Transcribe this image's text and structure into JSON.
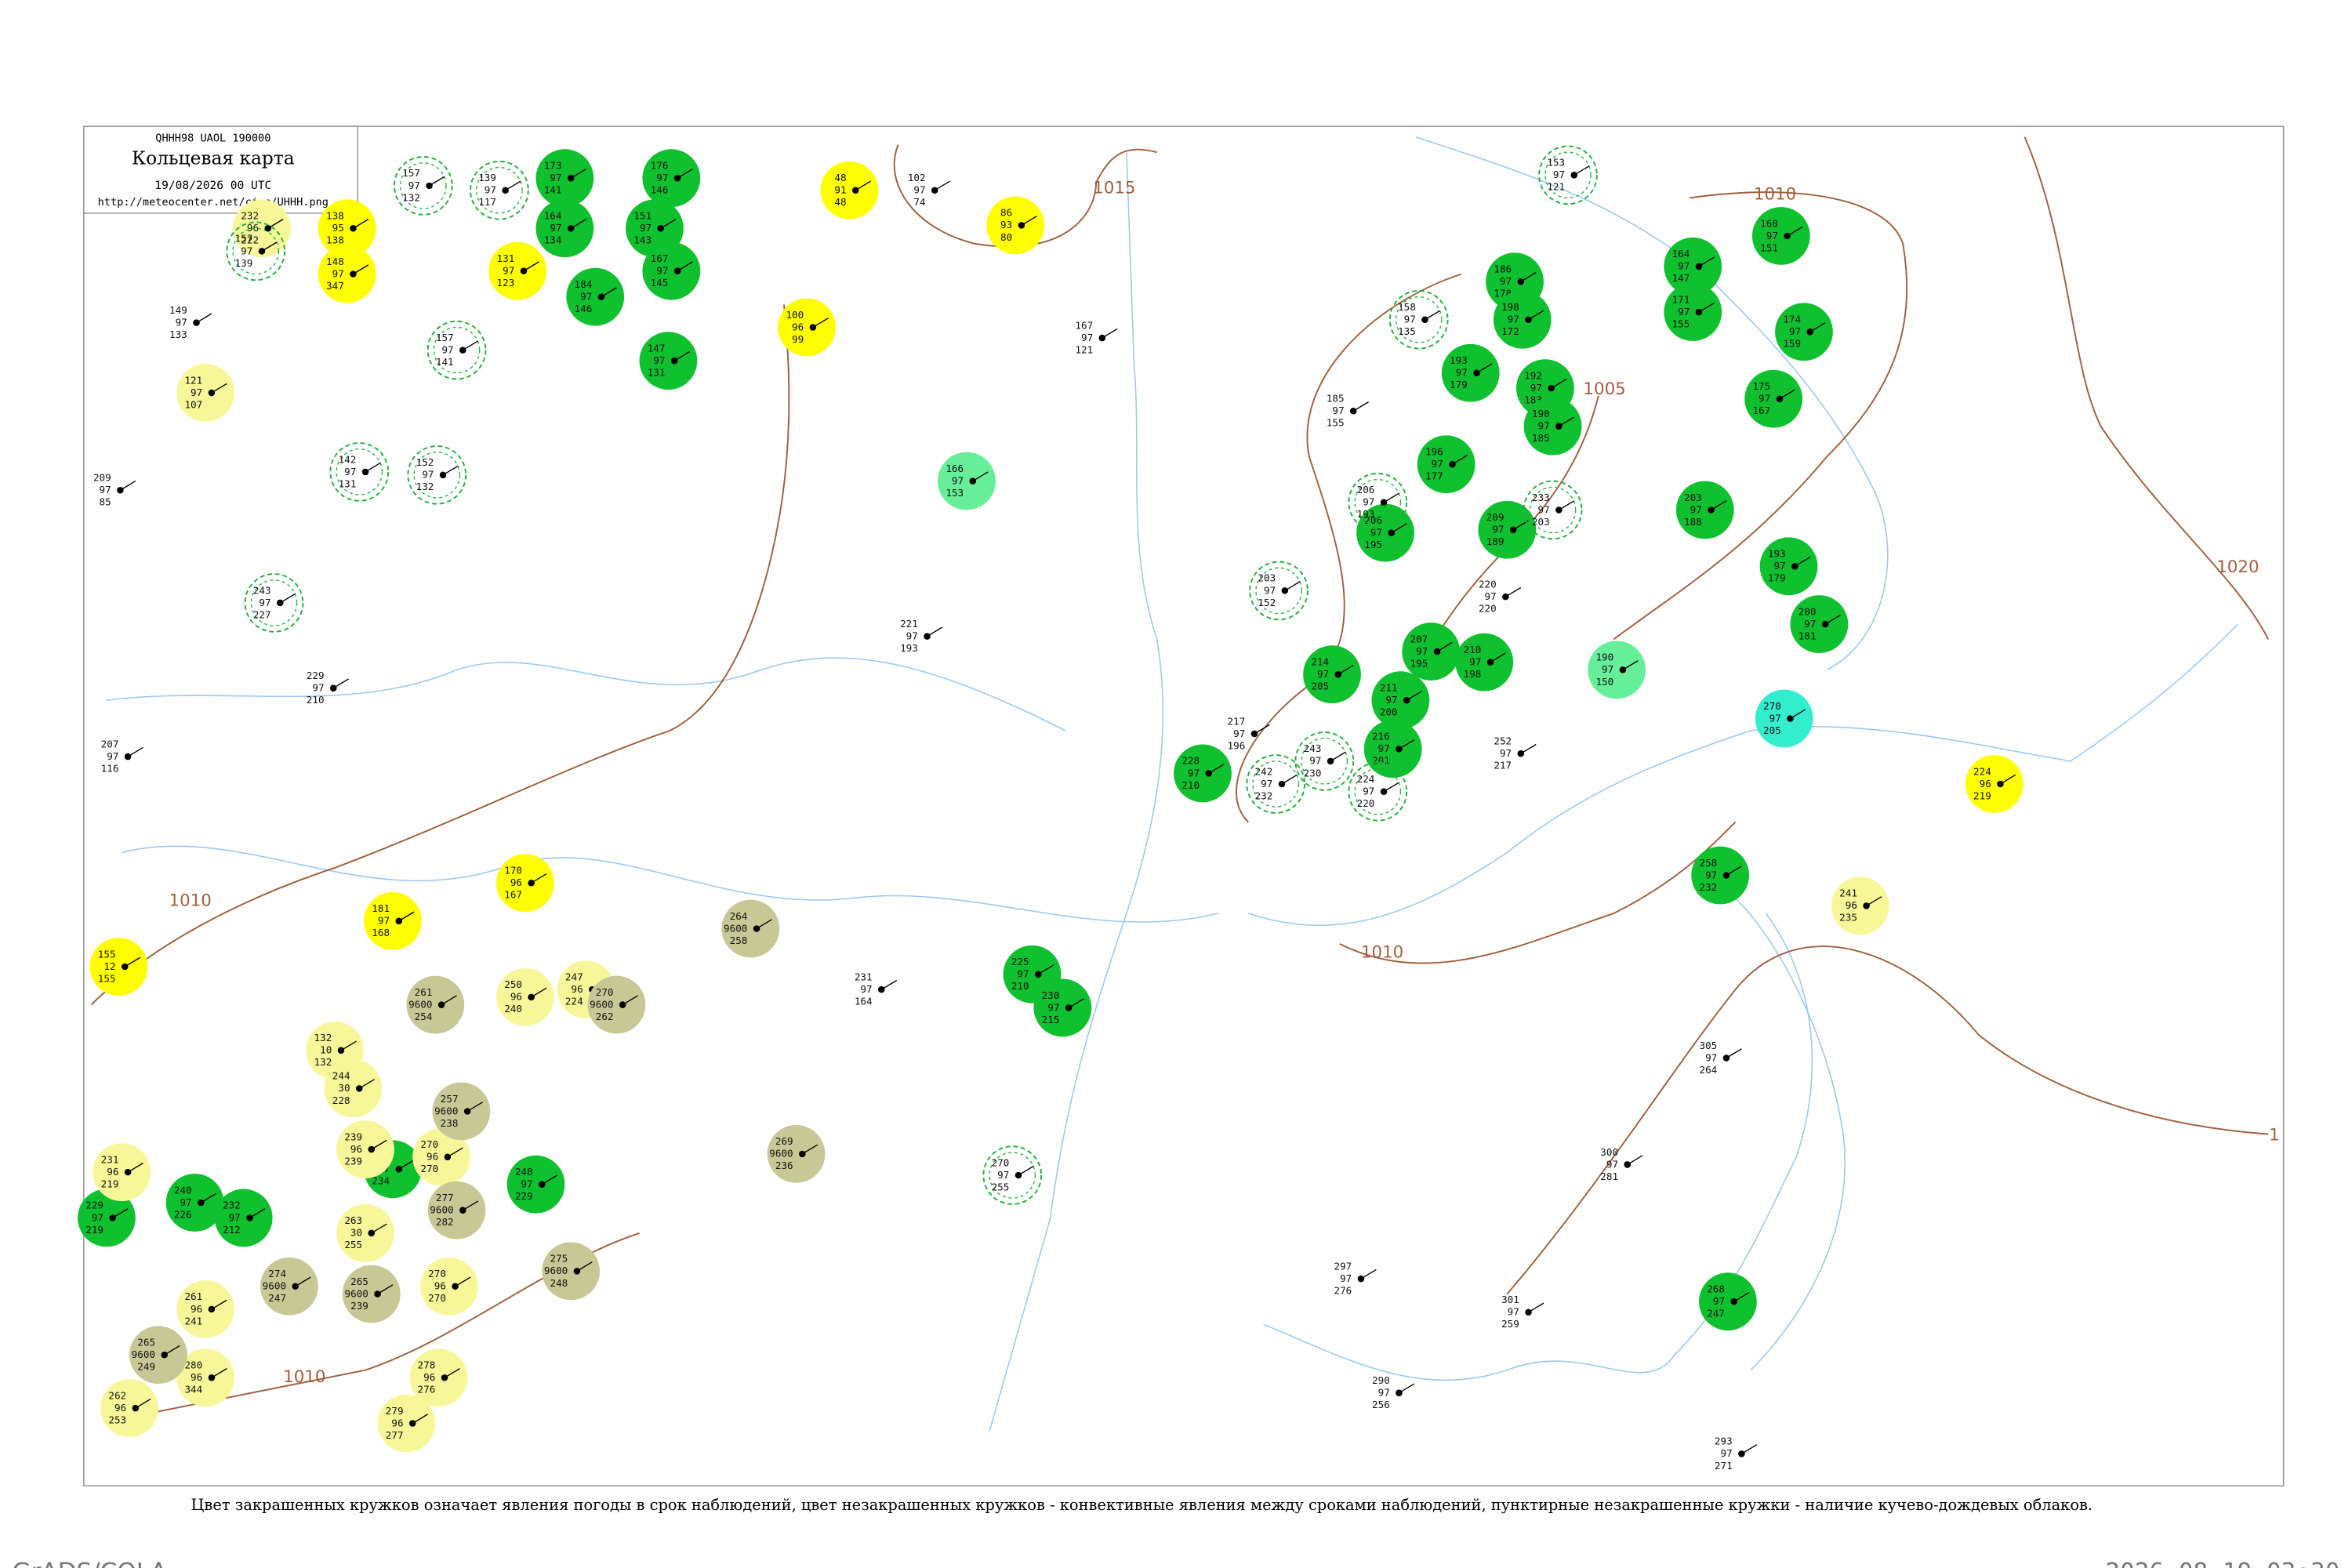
{
  "header": {
    "code": "QHHH98  UAOL  190000",
    "title": "Кольцевая карта",
    "date": "19/08/2026 00 UTC",
    "url": "http://meteocenter.net/circ/UHHH.png"
  },
  "caption": "Цвет закрашенных кружков означает явления погоды в срок наблюдений, цвет незакрашенных кружков - конвективные явления между сроками наблюдений, пунктирные незакрашенные кружки - наличие кучево-дождевых облаков.",
  "footer": {
    "left": "GrADS/COLA",
    "right": "2026-08-19-03:30"
  },
  "isobars": [
    "1015",
    "1010",
    "1005",
    "1020",
    "1010",
    "1010",
    "1010",
    "1"
  ],
  "stations": [
    {
      "color": "#0fc02f",
      "texts": [
        "173",
        "97",
        "141"
      ]
    },
    {
      "color": "#0fc02f",
      "texts": [
        "176",
        "97",
        "146"
      ]
    },
    {
      "color": "#0fc02f",
      "texts": [
        "164",
        "97",
        "134"
      ]
    },
    {
      "color": "#0fc02f",
      "texts": [
        "184",
        "97",
        "146"
      ]
    },
    {
      "color": "#0fc02f",
      "texts": [
        "151",
        "97",
        "143"
      ]
    },
    {
      "color": "#0fc02f",
      "texts": [
        "167",
        "97",
        "145"
      ]
    },
    {
      "color": "#0fc02f",
      "texts": [
        "147",
        "97",
        "131"
      ]
    },
    {
      "color": "#0fc02f",
      "texts": [
        "186",
        "97",
        "178"
      ]
    },
    {
      "color": "#0fc02f",
      "texts": [
        "198",
        "97",
        "172"
      ]
    },
    {
      "color": "#0fc02f",
      "texts": [
        "193",
        "97",
        "179"
      ]
    },
    {
      "color": "#0fc02f",
      "texts": [
        "192",
        "97",
        "183"
      ]
    },
    {
      "color": "#0fc02f",
      "texts": [
        "190",
        "97",
        "185"
      ]
    },
    {
      "color": "#0fc02f",
      "texts": [
        "196",
        "97",
        "177"
      ]
    },
    {
      "color": "#0fc02f",
      "texts": [
        "209",
        "97",
        "189"
      ]
    },
    {
      "color": "#0fc02f",
      "texts": [
        "206",
        "97",
        "195"
      ]
    },
    {
      "color": "#0fc02f",
      "texts": [
        "164",
        "97",
        "147"
      ]
    },
    {
      "color": "#0fc02f",
      "texts": [
        "171",
        "97",
        "155"
      ]
    },
    {
      "color": "#0fc02f",
      "texts": [
        "160",
        "97",
        "151"
      ]
    },
    {
      "color": "#0fc02f",
      "texts": [
        "174",
        "97",
        "159"
      ]
    },
    {
      "color": "#0fc02f",
      "texts": [
        "175",
        "97",
        "167"
      ]
    },
    {
      "color": "#0fc02f",
      "texts": [
        "203",
        "97",
        "188"
      ]
    },
    {
      "color": "#0fc02f",
      "texts": [
        "193",
        "97",
        "179"
      ]
    },
    {
      "color": "#0fc02f",
      "texts": [
        "200",
        "97",
        "181"
      ]
    },
    {
      "color": "#0fc02f",
      "texts": [
        "207",
        "97",
        "195"
      ]
    },
    {
      "color": "#0fc02f",
      "texts": [
        "210",
        "97",
        "198"
      ]
    },
    {
      "color": "#0fc02f",
      "texts": [
        "214",
        "97",
        "205"
      ]
    },
    {
      "color": "#0fc02f",
      "texts": [
        "211",
        "97",
        "200"
      ]
    },
    {
      "color": "#0fc02f",
      "texts": [
        "216",
        "97",
        "201"
      ]
    },
    {
      "color": "#0fc02f",
      "texts": [
        "228",
        "97",
        "210"
      ]
    },
    {
      "color": "#0fc02f",
      "texts": [
        "225",
        "97",
        "210"
      ]
    },
    {
      "color": "#0fc02f",
      "texts": [
        "230",
        "97",
        "215"
      ]
    },
    {
      "color": "#0fc02f",
      "texts": [
        "258",
        "97",
        "232"
      ]
    },
    {
      "color": "#0fc02f",
      "texts": [
        "268",
        "97",
        "247"
      ]
    },
    {
      "color": "#0fc02f",
      "texts": [
        "232",
        "97",
        "212"
      ]
    },
    {
      "color": "#0fc02f",
      "texts": [
        "229",
        "97",
        "219"
      ]
    },
    {
      "color": "#0fc02f",
      "texts": [
        "240",
        "97",
        "226"
      ]
    },
    {
      "color": "#0fc02f",
      "texts": [
        "252",
        "97",
        "234"
      ]
    },
    {
      "color": "#0fc02f",
      "texts": [
        "248",
        "97",
        "229"
      ]
    },
    {
      "color": "#ffff00",
      "texts": [
        "48",
        "91",
        "48"
      ]
    },
    {
      "color": "#ffff00",
      "texts": [
        "86",
        "93",
        "80"
      ]
    },
    {
      "color": "#ffff00",
      "texts": [
        "148",
        "97",
        "347"
      ]
    },
    {
      "color": "#ffff00",
      "texts": [
        "138",
        "95",
        "138"
      ]
    },
    {
      "color": "#ffff00",
      "texts": [
        "131",
        "97",
        "123"
      ]
    },
    {
      "color": "#ffff00",
      "texts": [
        "100",
        "96",
        "99"
      ]
    },
    {
      "color": "#ffff00",
      "texts": [
        "170",
        "96",
        "167"
      ]
    },
    {
      "color": "#ffff00",
      "texts": [
        "181",
        "97",
        "168"
      ]
    },
    {
      "color": "#ffff00",
      "texts": [
        "155",
        "12",
        "155"
      ]
    },
    {
      "color": "#ffff00",
      "texts": [
        "224",
        "96",
        "219"
      ]
    },
    {
      "color": "#f7f79a",
      "texts": [
        "121",
        "97",
        "107"
      ]
    },
    {
      "color": "#f7f79a",
      "texts": [
        "231",
        "96",
        "219"
      ]
    },
    {
      "color": "#f7f79a",
      "texts": [
        "239",
        "96",
        "239"
      ]
    },
    {
      "color": "#f7f79a",
      "texts": [
        "270",
        "96",
        "270"
      ]
    },
    {
      "color": "#f7f79a",
      "texts": [
        "263",
        "30",
        "255"
      ]
    },
    {
      "color": "#f7f79a",
      "texts": [
        "270",
        "96",
        "270"
      ]
    },
    {
      "color": "#f7f79a",
      "texts": [
        "278",
        "96",
        "276"
      ]
    },
    {
      "color": "#f7f79a",
      "texts": [
        "262",
        "96",
        "253"
      ]
    },
    {
      "color": "#f7f79a",
      "texts": [
        "261",
        "96",
        "241"
      ]
    },
    {
      "color": "#f7f79a",
      "texts": [
        "280",
        "96",
        "344"
      ]
    },
    {
      "color": "#f7f79a",
      "texts": [
        "279",
        "96",
        "277"
      ]
    },
    {
      "color": "#f7f79a",
      "texts": [
        "250",
        "96",
        "240"
      ]
    },
    {
      "color": "#f7f79a",
      "texts": [
        "247",
        "96",
        "224"
      ]
    },
    {
      "color": "#f7f79a",
      "texts": [
        "132",
        "10",
        "132"
      ]
    },
    {
      "color": "#f7f79a",
      "texts": [
        "244",
        "30",
        "228"
      ]
    },
    {
      "color": "#f7f79a",
      "texts": [
        "241",
        "96",
        "235"
      ]
    },
    {
      "color": "#f7f79a",
      "texts": [
        "232",
        "96",
        "222"
      ]
    },
    {
      "color": "#c8c897",
      "texts": [
        "261",
        "9600",
        "254"
      ]
    },
    {
      "color": "#c8c897",
      "texts": [
        "270",
        "9600",
        "262"
      ]
    },
    {
      "color": "#c8c897",
      "texts": [
        "264",
        "9600",
        "258"
      ]
    },
    {
      "color": "#c8c897",
      "texts": [
        "257",
        "9600",
        "238"
      ]
    },
    {
      "color": "#c8c897",
      "texts": [
        "269",
        "9600",
        "236"
      ]
    },
    {
      "color": "#c8c897",
      "texts": [
        "277",
        "9600",
        "282"
      ]
    },
    {
      "color": "#c8c897",
      "texts": [
        "274",
        "9600",
        "247"
      ]
    },
    {
      "color": "#c8c897",
      "texts": [
        "265",
        "9600",
        "239"
      ]
    },
    {
      "color": "#c8c897",
      "texts": [
        "275",
        "9600",
        "248"
      ]
    },
    {
      "color": "#c8c897",
      "texts": [
        "265",
        "9600",
        "249"
      ]
    },
    {
      "color": "#66ee99",
      "texts": [
        "166",
        "97",
        "153"
      ]
    },
    {
      "color": "#66ee99",
      "texts": [
        "190",
        "97",
        "150"
      ]
    },
    {
      "color": "#33eecc",
      "texts": [
        "270",
        "97",
        "205"
      ]
    },
    {
      "color": null,
      "ring": true,
      "texts": [
        "157",
        "97",
        "132"
      ]
    },
    {
      "color": null,
      "ring": true,
      "texts": [
        "139",
        "97",
        "117"
      ]
    },
    {
      "color": null,
      "ring": true,
      "texts": [
        "157",
        "97",
        "139"
      ]
    },
    {
      "color": null,
      "ring": true,
      "texts": [
        "157",
        "97",
        "141"
      ]
    },
    {
      "color": null,
      "ring": true,
      "texts": [
        "142",
        "97",
        "131"
      ]
    },
    {
      "color": null,
      "ring": true,
      "texts": [
        "152",
        "97",
        "132"
      ]
    },
    {
      "color": null,
      "ring": true,
      "texts": [
        "243",
        "97",
        "227"
      ]
    },
    {
      "color": null,
      "ring": true,
      "texts": [
        "203",
        "97",
        "152"
      ]
    },
    {
      "color": null,
      "ring": true,
      "texts": [
        "158",
        "97",
        "135"
      ]
    },
    {
      "color": null,
      "ring": true,
      "texts": [
        "153",
        "97",
        "121"
      ]
    },
    {
      "color": null,
      "ring": true,
      "texts": [
        "233",
        "97",
        "203"
      ]
    },
    {
      "color": null,
      "ring": true,
      "texts": [
        "206",
        "97",
        "193"
      ]
    },
    {
      "color": null,
      "ring": true,
      "texts": [
        "270",
        "97",
        "255"
      ]
    },
    {
      "color": null,
      "ring": true,
      "texts": [
        "243",
        "97",
        "230"
      ]
    },
    {
      "color": null,
      "ring": true,
      "texts": [
        "242",
        "97",
        "232"
      ]
    },
    {
      "color": null,
      "ring": true,
      "texts": [
        "224",
        "97",
        "220"
      ]
    },
    {
      "color": null,
      "texts": [
        "149",
        "97",
        "133"
      ]
    },
    {
      "color": null,
      "texts": [
        "209",
        "97",
        "85"
      ]
    },
    {
      "color": null,
      "texts": [
        "207",
        "97",
        "116"
      ]
    },
    {
      "color": null,
      "texts": [
        "229",
        "97",
        "210"
      ]
    },
    {
      "color": null,
      "texts": [
        "102",
        "97",
        "74"
      ]
    },
    {
      "color": null,
      "texts": [
        "167",
        "97",
        "121"
      ]
    },
    {
      "color": null,
      "texts": [
        "185",
        "97",
        "155"
      ]
    },
    {
      "color": null,
      "texts": [
        "220",
        "97",
        "220"
      ]
    },
    {
      "color": null,
      "texts": [
        "252",
        "97",
        "217"
      ]
    },
    {
      "color": null,
      "texts": [
        "300",
        "97",
        "281"
      ]
    },
    {
      "color": null,
      "texts": [
        "297",
        "97",
        "276"
      ]
    },
    {
      "color": null,
      "texts": [
        "290",
        "97",
        "256"
      ]
    },
    {
      "color": null,
      "texts": [
        "301",
        "97",
        "259"
      ]
    },
    {
      "color": null,
      "texts": [
        "293",
        "97",
        "271"
      ]
    },
    {
      "color": null,
      "texts": [
        "305",
        "97",
        "264"
      ]
    },
    {
      "color": null,
      "texts": [
        "231",
        "97",
        "164"
      ]
    },
    {
      "color": null,
      "texts": [
        "221",
        "97",
        "193"
      ]
    },
    {
      "color": null,
      "texts": [
        "217",
        "97",
        "196"
      ]
    }
  ]
}
